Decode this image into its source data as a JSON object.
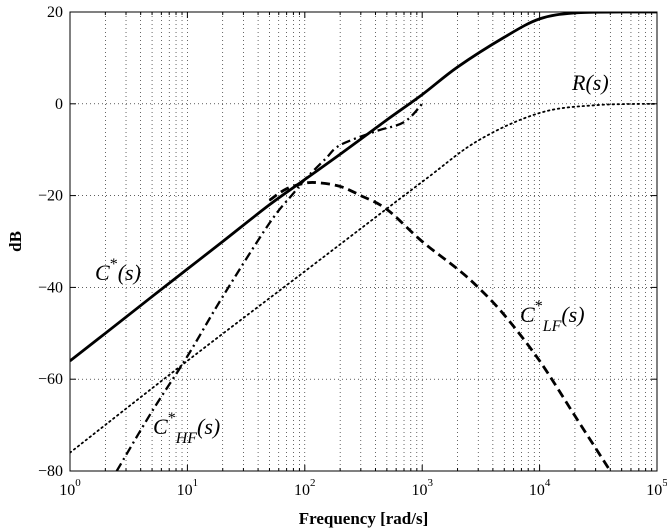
{
  "chart_data": {
    "type": "line",
    "title": "",
    "xlabel": "Frequency [rad/s]",
    "ylabel": "dB",
    "xscale": "log",
    "xlim": [
      1,
      100000
    ],
    "ylim": [
      -80,
      20
    ],
    "grid": "dotted, major and minor",
    "legend": "none (curves labeled directly)",
    "x_ticks": [
      1,
      10,
      100,
      1000,
      10000,
      100000
    ],
    "x_tick_labels": [
      {
        "base": "10",
        "exp": "0"
      },
      {
        "base": "10",
        "exp": "1"
      },
      {
        "base": "10",
        "exp": "2"
      },
      {
        "base": "10",
        "exp": "3"
      },
      {
        "base": "10",
        "exp": "4"
      },
      {
        "base": "10",
        "exp": "5"
      }
    ],
    "y_ticks": [
      20,
      0,
      -20,
      -40,
      -60,
      -80
    ],
    "y_tick_labels": [
      "20",
      "0",
      "−20",
      "−40",
      "−60",
      "−80"
    ],
    "series": [
      {
        "id": "c-star",
        "label": {
          "main": "C",
          "sup": "*",
          "sub": "",
          "tail": "(s)"
        },
        "style": "solid",
        "x": [
          1,
          2,
          5,
          10,
          20,
          50,
          100,
          200,
          500,
          1000,
          2000,
          5000,
          10000,
          20000,
          50000,
          100000
        ],
        "y": [
          -56,
          -50,
          -42,
          -36,
          -30,
          -22,
          -16.5,
          -11,
          -3.5,
          2,
          8,
          14.5,
          18.5,
          19.8,
          20,
          20
        ]
      },
      {
        "id": "r",
        "label": {
          "main": "R",
          "sup": "",
          "sub": "",
          "tail": "(s)"
        },
        "style": "dotted",
        "x": [
          1,
          10,
          100,
          1000,
          3000,
          10000,
          30000,
          100000
        ],
        "y": [
          -76,
          -56,
          -36.5,
          -17,
          -8,
          -2,
          -0.3,
          0
        ]
      },
      {
        "id": "c-lf-star",
        "label": {
          "main": "C",
          "sup": "*",
          "sub": "LF",
          "tail": "(s)"
        },
        "style": "dashed",
        "x": [
          50,
          70,
          100,
          130,
          200,
          300,
          500,
          1000,
          2000,
          3000,
          5000,
          10000,
          20000,
          40000
        ],
        "y": [
          -21,
          -18.5,
          -17.3,
          -17.2,
          -18,
          -20,
          -23,
          -30,
          -36,
          -40,
          -46,
          -56,
          -68,
          -80
        ]
      },
      {
        "id": "c-hf-star",
        "label": {
          "main": "C",
          "sup": "*",
          "sub": "HF",
          "tail": "(s)"
        },
        "style": "dash-dot",
        "x": [
          2.5,
          5,
          10,
          20,
          50,
          80,
          100,
          150,
          200,
          400,
          700,
          1000
        ],
        "y": [
          -80,
          -67,
          -55,
          -42,
          -26,
          -19.5,
          -16.5,
          -12,
          -9,
          -6,
          -4,
          0
        ]
      }
    ]
  }
}
